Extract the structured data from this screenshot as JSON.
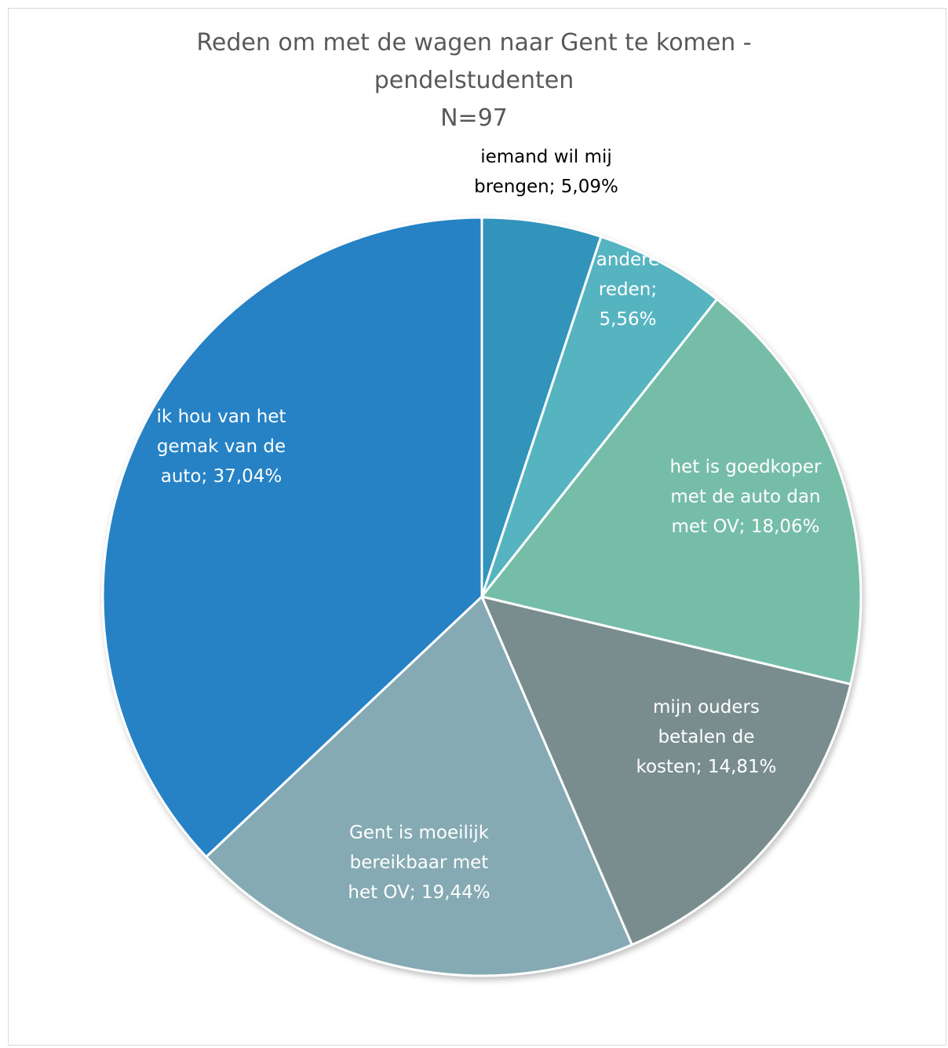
{
  "chart_data": {
    "type": "pie",
    "title_lines": [
      "Reden om met de wagen naar Gent te komen -",
      "pendelstudenten",
      "N=97"
    ],
    "slices": [
      {
        "name": "iemand wil mij brengen",
        "value": 5.09,
        "label_lines": [
          "iemand wil mij",
          "brengen; 5,09%"
        ],
        "color": "#3394BB"
      },
      {
        "name": "andere reden",
        "value": 5.56,
        "label_lines": [
          "andere",
          "reden;",
          "5,56%"
        ],
        "color": "#56B4C1"
      },
      {
        "name": "het is goedkoper met de auto dan met OV",
        "value": 18.06,
        "label_lines": [
          "het is goedkoper",
          "met de auto dan",
          "met OV; 18,06%"
        ],
        "color": "#76BDA8"
      },
      {
        "name": "mijn ouders betalen de kosten",
        "value": 14.81,
        "label_lines": [
          "mijn ouders",
          "betalen de",
          "kosten; 14,81%"
        ],
        "color": "#7A8D8E"
      },
      {
        "name": "Gent is moeilijk bereikbaar met het OV",
        "value": 19.44,
        "label_lines": [
          "Gent is moeilijk",
          "bereikbaar met",
          "het OV; 19,44%"
        ],
        "color": "#85AAB3"
      },
      {
        "name": "ik hou van het gemak van de auto",
        "value": 37.04,
        "label_lines": [
          "ik hou van het",
          "gemak van de",
          "auto; 37,04%"
        ],
        "color": "#2782C5"
      }
    ]
  }
}
